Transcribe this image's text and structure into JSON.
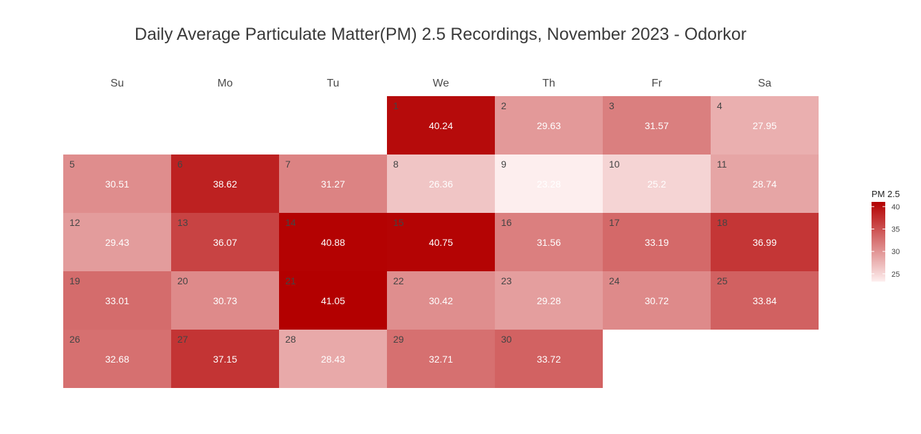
{
  "chart_data": {
    "type": "heatmap",
    "title": "Daily Average Particulate Matter(PM) 2.5 Recordings, November 2023 - Odorkor",
    "weekdays": [
      "Su",
      "Mo",
      "Tu",
      "We",
      "Th",
      "Fr",
      "Sa"
    ],
    "month": "November 2023",
    "first_weekday_index": 3,
    "days": [
      {
        "day": 1,
        "value": 40.24
      },
      {
        "day": 2,
        "value": 29.63
      },
      {
        "day": 3,
        "value": 31.57
      },
      {
        "day": 4,
        "value": 27.95
      },
      {
        "day": 5,
        "value": 30.51
      },
      {
        "day": 6,
        "value": 38.62
      },
      {
        "day": 7,
        "value": 31.27
      },
      {
        "day": 8,
        "value": 26.36
      },
      {
        "day": 9,
        "value": 23.28
      },
      {
        "day": 10,
        "value": 25.2
      },
      {
        "day": 11,
        "value": 28.74
      },
      {
        "day": 12,
        "value": 29.43
      },
      {
        "day": 13,
        "value": 36.07
      },
      {
        "day": 14,
        "value": 40.88
      },
      {
        "day": 15,
        "value": 40.75
      },
      {
        "day": 16,
        "value": 31.56
      },
      {
        "day": 17,
        "value": 33.19
      },
      {
        "day": 18,
        "value": 36.99
      },
      {
        "day": 19,
        "value": 33.01
      },
      {
        "day": 20,
        "value": 30.73
      },
      {
        "day": 21,
        "value": 41.05
      },
      {
        "day": 22,
        "value": 30.42
      },
      {
        "day": 23,
        "value": 29.28
      },
      {
        "day": 24,
        "value": 30.72
      },
      {
        "day": 25,
        "value": 33.84
      },
      {
        "day": 26,
        "value": 32.68
      },
      {
        "day": 27,
        "value": 37.15
      },
      {
        "day": 28,
        "value": 28.43
      },
      {
        "day": 29,
        "value": 32.71
      },
      {
        "day": 30,
        "value": 33.72
      }
    ],
    "legend": {
      "title": "PM 2.5",
      "ticks": [
        25,
        30,
        35,
        40
      ],
      "range": [
        23.28,
        41.05
      ],
      "position": "right"
    },
    "colors": {
      "low": "#fdeeee",
      "high": "#b30000",
      "day_number_text": "#444444",
      "value_text": "#ffffff"
    }
  }
}
